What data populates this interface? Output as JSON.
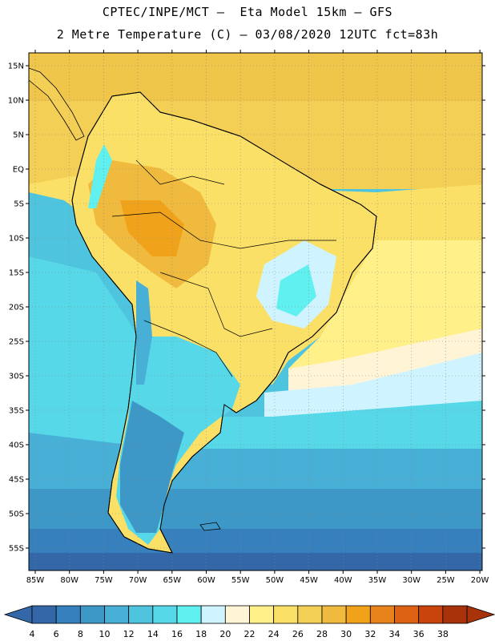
{
  "header": {
    "line1": "CPTEC/INPE/MCT –  Eta Model 15km – GFS",
    "line2": "2 Metre Temperature (C) – 03/08/2020 12UTC fct=83h"
  },
  "axes": {
    "lat_labels": [
      "15N",
      "10N",
      "5N",
      "EQ",
      "5S",
      "10S",
      "15S",
      "20S",
      "25S",
      "30S",
      "35S",
      "40S",
      "45S",
      "50S",
      "55S"
    ],
    "lon_labels": [
      "85W",
      "80W",
      "75W",
      "70W",
      "65W",
      "60W",
      "55W",
      "50W",
      "45W",
      "40W",
      "35W",
      "30W",
      "25W",
      "20W"
    ]
  },
  "colorbar": {
    "labels": [
      "4",
      "6",
      "8",
      "10",
      "12",
      "14",
      "16",
      "18",
      "20",
      "22",
      "24",
      "26",
      "28",
      "30",
      "32",
      "34",
      "36",
      "38"
    ],
    "colors": [
      "#3467a8",
      "#3580bd",
      "#3d98c8",
      "#48b0d6",
      "#4fc4de",
      "#57d8e8",
      "#60f0f0",
      "#d0f4ff",
      "#fff5d6",
      "#fff08a",
      "#fbe068",
      "#f4cf55",
      "#efba3e",
      "#f0a21a",
      "#e8821a",
      "#de6214",
      "#c9440c",
      "#a8320a"
    ],
    "low_color": "#3467a8",
    "high_color": "#a8320a"
  }
}
